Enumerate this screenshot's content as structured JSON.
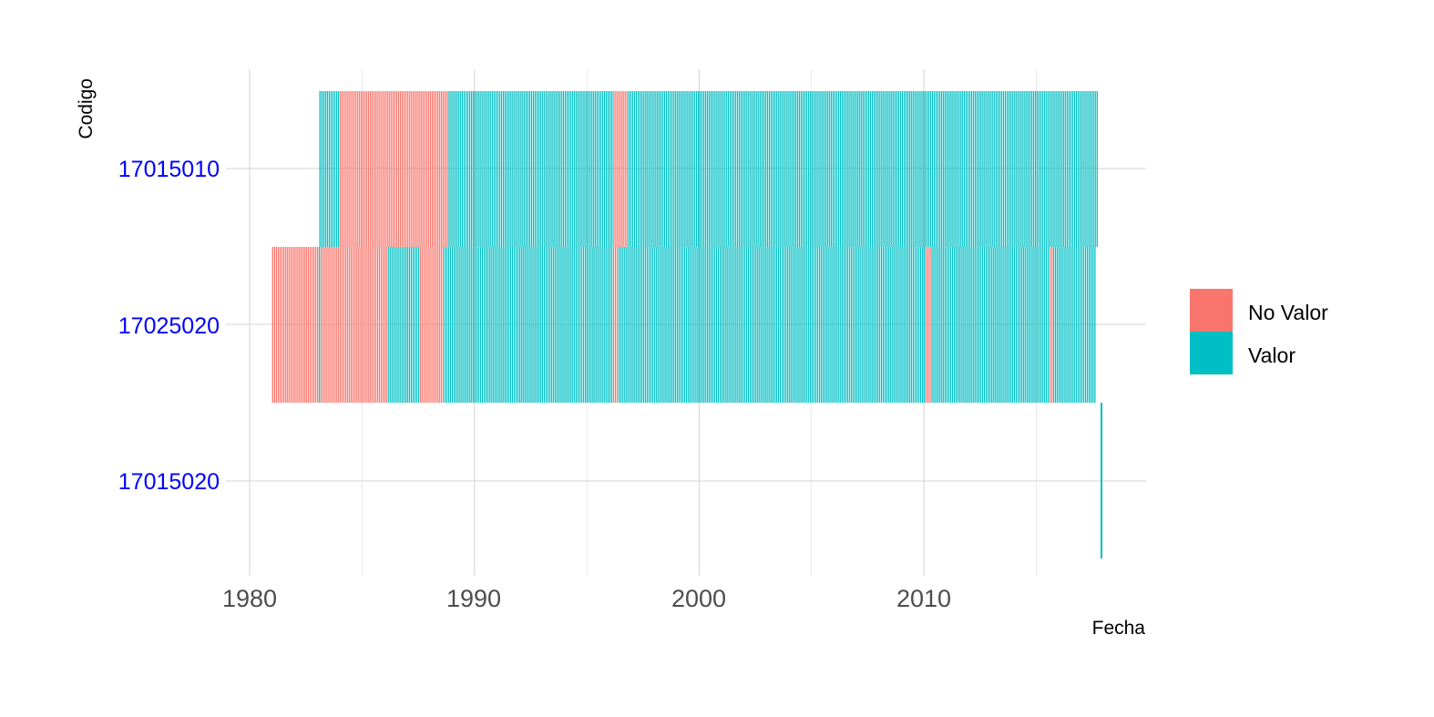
{
  "chart_data": {
    "type": "bar",
    "title": "",
    "xlabel": "Fecha",
    "ylabel": "Codigo",
    "xlim": [
      1975.8,
      2015.7
    ],
    "x_ticks": [
      1980,
      1990,
      2000,
      2010
    ],
    "x_tick_labels": [
      "1980",
      "1990",
      "2000",
      "2010"
    ],
    "categories": [
      "17015010",
      "17025020",
      "17015020"
    ],
    "tick_label_color": "#0000ff",
    "grid": true,
    "legend_position": "right",
    "series": [
      {
        "name": "No Valor",
        "color": "#f8766d"
      },
      {
        "name": "Valor",
        "color": "#00bfc4"
      }
    ],
    "coverage": [
      {
        "codigo": "17015010",
        "start_year": 1983.1,
        "end_year": 2017.7,
        "bar_color_pattern": "Valor",
        "no_valor_periods": [
          [
            1984.0,
            1988.8
          ],
          [
            1996.1,
            1996.8
          ]
        ]
      },
      {
        "codigo": "17025020",
        "start_year": 1981.0,
        "end_year": 2017.6,
        "bar_color_pattern": "Valor",
        "no_valor_periods": [
          [
            1981.0,
            1983.0
          ],
          [
            1983.1,
            1986.1
          ],
          [
            1987.5,
            1988.6
          ],
          [
            1996.1,
            1996.4
          ],
          [
            2010.0,
            2010.3
          ],
          [
            2015.5,
            2015.7
          ]
        ]
      },
      {
        "codigo": "17015020",
        "start_year": 2017.9,
        "end_year": 2017.9,
        "bar_color_pattern": "Valor",
        "no_valor_periods": []
      }
    ]
  }
}
